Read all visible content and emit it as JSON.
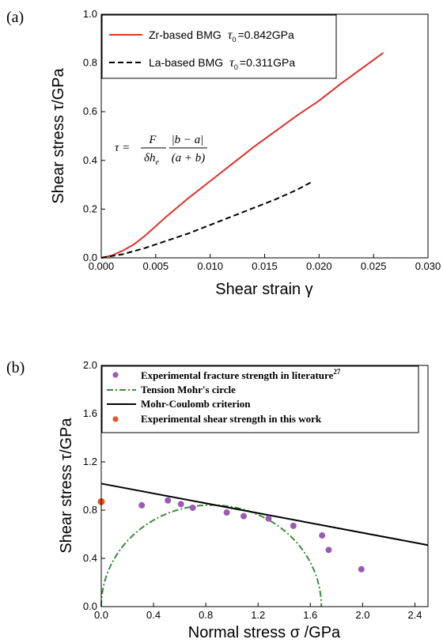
{
  "chart_data": [
    {
      "type": "line",
      "panel_label": "(a)",
      "xlabel": "Shear strain  γ",
      "ylabel": "Shear stress  τ/GPa",
      "xlim": [
        0.0,
        0.03
      ],
      "ylim": [
        0.0,
        1.0
      ],
      "x_ticks": [
        "0.000",
        "0.005",
        "0.010",
        "0.015",
        "0.020",
        "0.025",
        "0.030"
      ],
      "y_ticks": [
        "0.0",
        "0.2",
        "0.4",
        "0.6",
        "0.8",
        "1.0"
      ],
      "grid": false,
      "legend_position": "top-left",
      "formula": {
        "lhs": "τ =",
        "num1": "F",
        "den1": "δh",
        "den1_sub": "e",
        "num2": "|b − a|",
        "den2": "(a + b)"
      },
      "series": [
        {
          "legend_text": "Zr-based BMG",
          "legend_tau": "τ",
          "legend_sub": "0",
          "legend_value": "=0.842GPa",
          "color": "#e0302b",
          "style": "solid",
          "x": [
            0.0,
            0.001,
            0.002,
            0.003,
            0.004,
            0.005,
            0.006,
            0.008,
            0.01,
            0.012,
            0.014,
            0.016,
            0.018,
            0.02,
            0.022,
            0.024,
            0.0259
          ],
          "y": [
            0.0,
            0.01,
            0.03,
            0.055,
            0.09,
            0.13,
            0.17,
            0.245,
            0.315,
            0.385,
            0.455,
            0.52,
            0.585,
            0.645,
            0.715,
            0.78,
            0.842
          ]
        },
        {
          "legend_text": "La-based BMG",
          "legend_tau": "τ",
          "legend_sub": "0",
          "legend_value": "=0.311GPa",
          "color": "#000000",
          "style": "dashed",
          "x": [
            0.0,
            0.002,
            0.004,
            0.006,
            0.008,
            0.01,
            0.012,
            0.014,
            0.016,
            0.018,
            0.0193
          ],
          "y": [
            0.0,
            0.015,
            0.04,
            0.07,
            0.1,
            0.135,
            0.17,
            0.205,
            0.24,
            0.28,
            0.311
          ]
        }
      ]
    },
    {
      "type": "scatter",
      "panel_label": "(b)",
      "xlabel": "Normal stress σ /GPa",
      "ylabel": "Shear stress τ/GPa",
      "xlim": [
        0.0,
        2.5
      ],
      "ylim": [
        0.0,
        2.0
      ],
      "x_ticks": [
        "0.0",
        "0.4",
        "0.8",
        "1.2",
        "1.6",
        "2.0",
        "2.4"
      ],
      "y_ticks": [
        "0.0",
        "0.4",
        "0.8",
        "1.2",
        "1.6",
        "2.0"
      ],
      "grid": false,
      "legend_position": "top-left",
      "series": [
        {
          "name": "Experimental fracture strength in literature",
          "superscript": "27",
          "color": "#9b59b6",
          "style": "markers",
          "points": [
            [
              0.31,
              0.84
            ],
            [
              0.51,
              0.88
            ],
            [
              0.61,
              0.85
            ],
            [
              0.7,
              0.82
            ],
            [
              0.96,
              0.78
            ],
            [
              1.09,
              0.75
            ],
            [
              1.28,
              0.73
            ],
            [
              1.47,
              0.67
            ],
            [
              1.69,
              0.59
            ],
            [
              1.74,
              0.47
            ],
            [
              1.99,
              0.31
            ]
          ]
        },
        {
          "name": "Tension Mohr's circle",
          "color": "#3d8b3d",
          "style": "dashdot",
          "center": 0.842,
          "radius": 0.842
        },
        {
          "name": "Mohr-Coulomb criterion",
          "color": "#000000",
          "style": "solid",
          "x": [
            0.0,
            2.5
          ],
          "y": [
            1.02,
            0.51
          ]
        },
        {
          "name": "Experimental shear strength in this work",
          "color": "#e2572a",
          "style": "markers",
          "points": [
            [
              0.0,
              0.87
            ]
          ]
        }
      ]
    }
  ]
}
